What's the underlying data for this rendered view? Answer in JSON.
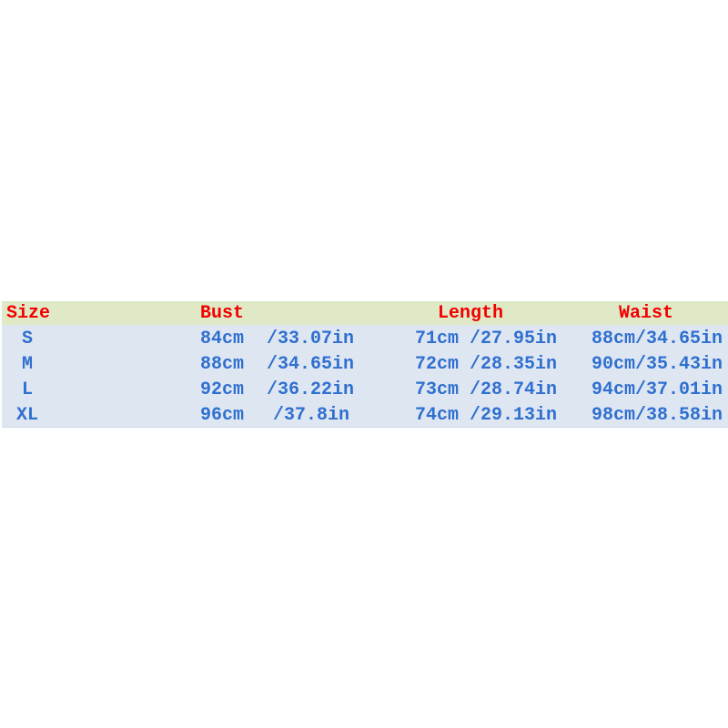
{
  "headers": [
    "Size",
    "Bust",
    "Length",
    "Waist"
  ],
  "rows": [
    {
      "size": "S",
      "bust_cm": "84cm",
      "bust_in": "/33.07in",
      "length": "71cm /27.95in",
      "waist": "88cm/34.65in"
    },
    {
      "size": "M",
      "bust_cm": "88cm",
      "bust_in": "/34.65in",
      "length": "72cm /28.35in",
      "waist": "90cm/35.43in"
    },
    {
      "size": "L",
      "bust_cm": "92cm",
      "bust_in": "/36.22in",
      "length": "73cm /28.74in",
      "waist": "94cm/37.01in"
    },
    {
      "size": "XL",
      "bust_cm": "96cm",
      "bust_in": "/37.8in",
      "length": "74cm /29.13in",
      "waist": "98cm/38.58in"
    }
  ],
  "colors": {
    "header_text": "#f20000",
    "value_text": "#2f6fcf",
    "header_bg": "#dfe9c6",
    "body_bg": "#dee6f2"
  }
}
